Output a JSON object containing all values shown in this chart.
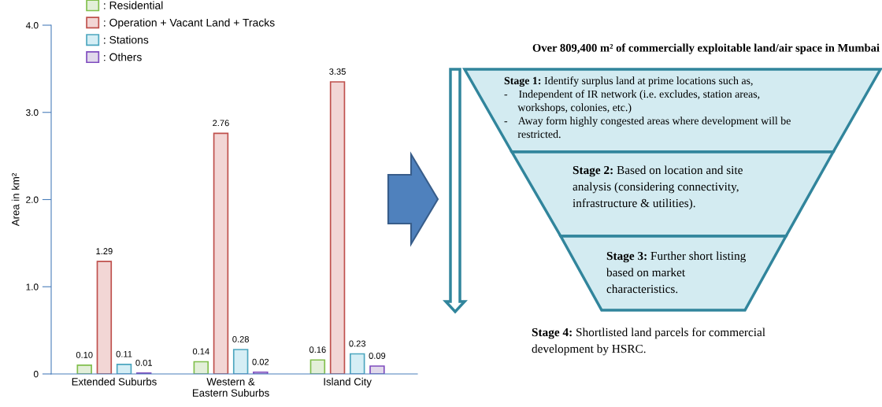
{
  "chart_data": [
    {
      "type": "bar",
      "ylabel": "Area in km²",
      "categories": [
        "Extended Suburbs",
        "Western &\nEastern Suburbs",
        "Island City"
      ],
      "series": [
        {
          "name": ": Residential",
          "color": "#e3efd9",
          "values": [
            0.1,
            0.14,
            0.16
          ],
          "value_labels": [
            "0.10",
            "0.14",
            "0.16"
          ]
        },
        {
          "name": ": Operation + Vacant Land + Tracks",
          "color": "#f2d6d5",
          "values": [
            1.29,
            2.76,
            3.35
          ],
          "value_labels": [
            "1.29",
            "2.76",
            "3.35"
          ]
        },
        {
          "name": ": Stations",
          "color": "#d5eef5",
          "values": [
            0.11,
            0.28,
            0.23
          ],
          "value_labels": [
            "0.11",
            "0.28",
            "0.23"
          ]
        },
        {
          "name": ": Others",
          "color": "#e1d9eb",
          "values": [
            0.01,
            0.02,
            0.09
          ],
          "value_labels": [
            "0.01",
            "0.02",
            "0.09"
          ]
        }
      ],
      "ylim": [
        0,
        4
      ],
      "yticks": [
        0,
        {
          "value": 1,
          "label": "1.0"
        },
        {
          "value": 2,
          "label": "2.0"
        },
        {
          "value": 3,
          "label": "3.0"
        },
        {
          "value": 4,
          "label": "4.0"
        }
      ],
      "grid": false,
      "legend": "top left"
    },
    {
      "type": "other",
      "title": "Over 809,400 m² of commercially exploitable land/air space in Mumbai",
      "annotations": [
        "Stage 1: Identify surplus land at prime locations such as,\n-    Independent of IR network (i.e. excludes, station areas,\n     workshops, colonies, etc.)\n-    Away form highly congested areas where development will be\n     restricted.",
        "Stage 2: Based on location and site\nanalysis (considering connectivity,\ninfrastructure & utilities).",
        "Stage 3: Further short listing\nbased on market\ncharacteristics.",
        "Stage 4: Shortlisted land parcels for commercial\ndevelopment by HSRC."
      ]
    }
  ]
}
